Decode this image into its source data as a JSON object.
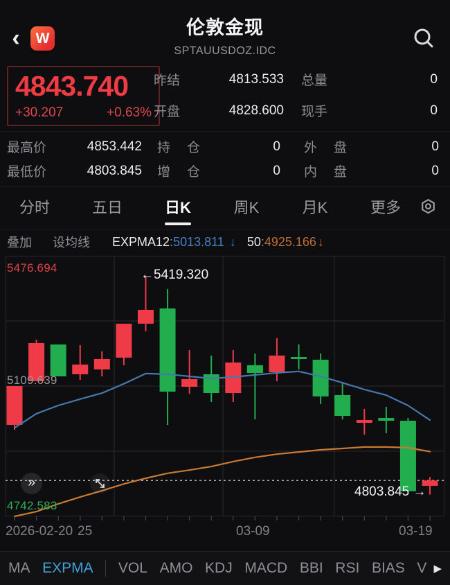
{
  "header": {
    "back_glyph": "‹",
    "logo_text": "W",
    "title": "伦敦金现",
    "subtitle": "SPTAUUSDOZ.IDC"
  },
  "price_panel": {
    "last": "4843.740",
    "change": "+30.207",
    "change_pct": "+0.63%",
    "rows": [
      {
        "l1": "昨结",
        "v1": "4813.533",
        "l2": "总量",
        "v2": "0"
      },
      {
        "l1": "开盘",
        "v1": "4828.600",
        "l2": "现手",
        "v2": "0"
      }
    ]
  },
  "detail_rows": [
    {
      "l1": "最高价",
      "v1": "4853.442",
      "l2": "持 仓",
      "v2": "0",
      "l3": "外 盘",
      "v3": "0"
    },
    {
      "l1": "最低价",
      "v1": "4803.845",
      "l2": "增 仓",
      "v2": "0",
      "l3": "内 盘",
      "v3": "0"
    }
  ],
  "period_tabs": [
    {
      "label": "分时",
      "active": false
    },
    {
      "label": "五日",
      "active": false
    },
    {
      "label": "日K",
      "active": true
    },
    {
      "label": "周K",
      "active": false
    },
    {
      "label": "月K",
      "active": false
    },
    {
      "label": "更多",
      "active": false
    }
  ],
  "indicator_bar": {
    "overlay": "叠加",
    "ma_setting": "设均线",
    "name1": "EXPMA12",
    "colon": ":",
    "value1": "5013.811",
    "arrow1": "↓",
    "name2": "50",
    "value2": "4925.166",
    "arrow2": "↓"
  },
  "chart_data": {
    "type": "candlestick",
    "title": "伦敦金现 日K",
    "y_axis": {
      "max": 5476.694,
      "mid": 5109.639,
      "min": 4742.583
    },
    "y_axis_labels": {
      "max": "5476.694",
      "mid": "5109.639",
      "min": "4742.583"
    },
    "x_axis_labels": [
      "2026-02-20",
      "25",
      "03-09",
      "03-19"
    ],
    "current_price": 4843.74,
    "annotations": {
      "high": "←5419.320",
      "low": "4803.845 →"
    },
    "candles_ohlc": [
      [
        5000.3,
        5109.6,
        4986.6,
        5109.6
      ],
      [
        5123.3,
        5240.4,
        5123.3,
        5230.7
      ],
      [
        5226.8,
        5226.8,
        5137.0,
        5137.0
      ],
      [
        5142.8,
        5224.8,
        5127.2,
        5170.2
      ],
      [
        5156.5,
        5207.3,
        5137.0,
        5185.8
      ],
      [
        5189.7,
        5285.3,
        5168.2,
        5285.3
      ],
      [
        5285.3,
        5419.32,
        5263.9,
        5324.4
      ],
      [
        5328.3,
        5383.0,
        5000.3,
        5094.0
      ],
      [
        5107.7,
        5211.2,
        5088.2,
        5129.2
      ],
      [
        5142.8,
        5195.5,
        5064.7,
        5090.1
      ],
      [
        5090.1,
        5211.2,
        5064.7,
        5176.0
      ],
      [
        5168.2,
        5201.4,
        5015.9,
        5146.7
      ],
      [
        5148.7,
        5244.3,
        5123.3,
        5195.5
      ],
      [
        5191.6,
        5226.8,
        5156.5,
        5185.8
      ],
      [
        5183.9,
        5201.4,
        5058.9,
        5080.4
      ],
      [
        5084.3,
        5119.4,
        5015.9,
        5025.7
      ],
      [
        5006.2,
        5045.2,
        4973.0,
        5014.0
      ],
      [
        5019.8,
        5051.1,
        4976.9,
        5012.0
      ],
      [
        5012.0,
        5019.8,
        4813.5,
        4813.5
      ],
      [
        4828.6,
        4853.442,
        4803.845,
        4843.74
      ]
    ],
    "series": [
      {
        "name": "EXPMA12",
        "color": "#4579ad",
        "values": [
          4992,
          5032,
          5055,
          5073,
          5090,
          5116,
          5145,
          5143,
          5137,
          5131,
          5135,
          5141,
          5147,
          5151,
          5137,
          5119,
          5100,
          5084,
          5055,
          5013.811
        ]
      },
      {
        "name": "EXPMA50",
        "color": "#c97a33",
        "values": [
          4742.583,
          4756,
          4778,
          4797,
          4815,
          4834,
          4850,
          4864,
          4873,
          4883,
          4897,
          4909,
          4918,
          4924,
          4930,
          4934,
          4938,
          4938,
          4936,
          4925.166
        ]
      }
    ],
    "legend_position": "top-left-bar",
    "grid": true
  },
  "chart_overlay": {
    "fast_forward_glyph": "»"
  },
  "bottom_tabs": [
    {
      "label": "MA",
      "active": false,
      "divider_after": false
    },
    {
      "label": "EXPMA",
      "active": true,
      "divider_after": true
    },
    {
      "label": "VOL",
      "active": false,
      "divider_after": false
    },
    {
      "label": "AMO",
      "active": false,
      "divider_after": false
    },
    {
      "label": "KDJ",
      "active": false,
      "divider_after": false
    },
    {
      "label": "MACD",
      "active": false,
      "divider_after": false
    },
    {
      "label": "BBI",
      "active": false,
      "divider_after": false
    },
    {
      "label": "RSI",
      "active": false,
      "divider_after": false
    },
    {
      "label": "BIAS",
      "active": false,
      "divider_after": false
    },
    {
      "label": "V",
      "active": false,
      "divider_after": false
    }
  ],
  "colors": {
    "up_red": "#ee3b47",
    "down_green": "#22ad4f",
    "price_red": "#ee3b44",
    "ema12_blue": "#4579ad",
    "ema50_orange": "#c97a33",
    "active_tab_cyan": "#3ea2d8",
    "grid_gray": "#2a2a2e",
    "dotted_price_line": "#c8c8cc",
    "axis_max_red": "#e0434e",
    "axis_min_green": "#2fae57"
  }
}
